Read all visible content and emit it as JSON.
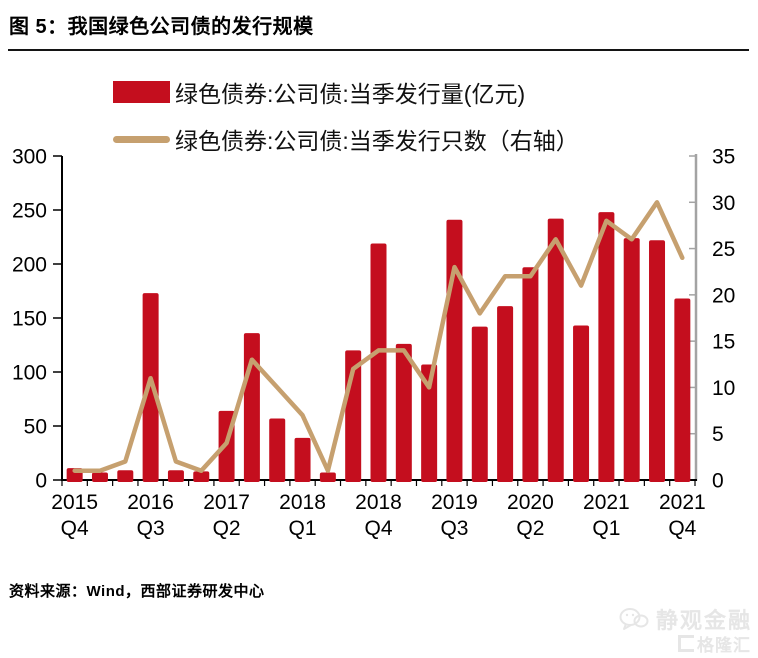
{
  "figure": {
    "title": "图 5：我国绿色公司债的发行规模",
    "source": "资料来源：Wind，西部证券研发中心"
  },
  "legend": [
    {
      "label": "绿色债券:公司债:当季发行量(亿元)",
      "marker": "bar-swatch"
    },
    {
      "label": "绿色债券:公司债:当季发行只数（右轴）",
      "marker": "line-swatch"
    }
  ],
  "watermark": {
    "brand": "静观金融",
    "platform": "格隆汇",
    "icon": "chat-bubbles-icon",
    "logo": "gelonghui-logo"
  },
  "colors": {
    "bar": "#C40E1E",
    "line": "#C6A06F",
    "axis": "#000000",
    "right_axis": "#A3A3A3",
    "watermark": "#E6E6E6"
  },
  "chart_data": {
    "type": "bar",
    "combo": "bar+line",
    "title": "图 5：我国绿色公司债的发行规模",
    "categories": [
      "2015Q4",
      "2016Q1",
      "2016Q2",
      "2016Q3",
      "2016Q4",
      "2017Q1",
      "2017Q2",
      "2017Q3",
      "2017Q4",
      "2018Q1",
      "2018Q2",
      "2018Q3",
      "2018Q4",
      "2019Q1",
      "2019Q2",
      "2019Q3",
      "2019Q4",
      "2020Q1",
      "2020Q2",
      "2020Q3",
      "2020Q4",
      "2021Q1",
      "2021Q2",
      "2021Q3",
      "2021Q4"
    ],
    "series": [
      {
        "name": "绿色债券:公司债:当季发行量(亿元)",
        "type": "bar",
        "axis": "left",
        "values": [
          11,
          7,
          9,
          173,
          9,
          8,
          64,
          136,
          57,
          39,
          7,
          120,
          219,
          126,
          107,
          241,
          142,
          161,
          197,
          242,
          143,
          248,
          224,
          222,
          168
        ]
      },
      {
        "name": "绿色债券:公司债:当季发行只数（右轴）",
        "type": "line",
        "axis": "right",
        "values": [
          1,
          1,
          2,
          11,
          2,
          1,
          4,
          13,
          10,
          7,
          1,
          12,
          14,
          14,
          10,
          23,
          18,
          22,
          22,
          26,
          21,
          28,
          26,
          30,
          24
        ]
      }
    ],
    "left_axis": {
      "min": 0,
      "max": 300,
      "step": 50,
      "ticks": [
        0,
        50,
        100,
        150,
        200,
        250,
        300
      ]
    },
    "right_axis": {
      "min": 0,
      "max": 35,
      "step": 5,
      "ticks": [
        0,
        5,
        10,
        15,
        20,
        25,
        30,
        35
      ]
    },
    "x_tick_labels": [
      [
        "2015",
        "Q4"
      ],
      [
        "2016",
        "Q3"
      ],
      [
        "2017",
        "Q2"
      ],
      [
        "2018",
        "Q1"
      ],
      [
        "2018",
        "Q4"
      ],
      [
        "2019",
        "Q3"
      ],
      [
        "2020",
        "Q2"
      ],
      [
        "2021",
        "Q1"
      ],
      [
        "2021",
        "Q4"
      ]
    ],
    "x_tick_indices": [
      0,
      3,
      6,
      9,
      12,
      15,
      18,
      21,
      24
    ],
    "grid": false,
    "legend_position": "top-left"
  }
}
